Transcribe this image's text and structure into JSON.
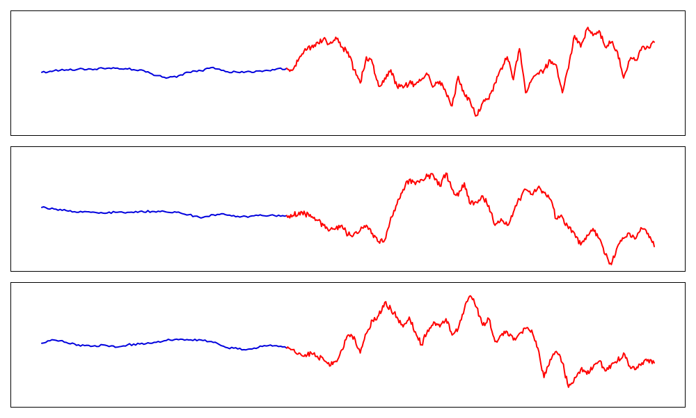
{
  "chart_data": [
    {
      "type": "line",
      "xlim": [
        0,
        1000
      ],
      "ylim": [
        -3.5,
        3.5
      ],
      "grid": false,
      "legend": "none",
      "series": [
        {
          "color": "#0000dd",
          "x": [
            0,
            20,
            40,
            60,
            80,
            100,
            120,
            140,
            160,
            180,
            200,
            220,
            240,
            260,
            280,
            300,
            320,
            340,
            360,
            380,
            400
          ],
          "y": [
            0.05,
            0.15,
            0.2,
            0.25,
            0.25,
            0.3,
            0.3,
            0.25,
            0.2,
            -0.05,
            -0.25,
            -0.25,
            0.05,
            0.15,
            0.35,
            0.1,
            0.05,
            0.1,
            0.1,
            0.2,
            0.3
          ]
        },
        {
          "color": "#ff0000",
          "x": [
            400,
            410,
            420,
            430,
            440,
            450,
            460,
            470,
            480,
            490,
            500,
            510,
            520,
            530,
            540,
            550,
            560,
            570,
            580,
            590,
            600,
            610,
            620,
            630,
            640,
            650,
            660,
            670,
            680,
            690,
            700,
            710,
            720,
            730,
            740,
            750,
            760,
            770,
            780,
            790,
            800,
            810,
            820,
            830,
            840,
            850,
            860,
            870,
            880,
            890,
            900,
            910,
            920,
            930,
            940,
            950,
            960,
            970,
            980,
            990,
            1000
          ],
          "y": [
            0.3,
            0.2,
            0.9,
            1.5,
            1.6,
            1.9,
            2.1,
            1.8,
            2.2,
            1.6,
            1.3,
            0.2,
            -0.6,
            1.0,
            0.6,
            -0.8,
            -0.3,
            0.2,
            -0.8,
            -0.9,
            -0.6,
            -0.7,
            -0.4,
            -0.1,
            -0.8,
            -0.5,
            -1.2,
            -2.0,
            -0.2,
            -1.3,
            -1.8,
            -2.6,
            -1.8,
            -1.6,
            -0.6,
            0.3,
            1.0,
            -0.4,
            1.5,
            -1.2,
            -0.4,
            0.0,
            0.2,
            0.8,
            0.5,
            -1.2,
            0.3,
            2.3,
            1.6,
            2.7,
            2.3,
            2.6,
            1.6,
            1.9,
            1.3,
            -0.3,
            0.8,
            0.8,
            1.6,
            1.6,
            1.9
          ]
        }
      ]
    },
    {
      "type": "line",
      "xlim": [
        0,
        1000
      ],
      "ylim": [
        -3.5,
        3.5
      ],
      "grid": false,
      "legend": "none",
      "series": [
        {
          "color": "#0000dd",
          "x": [
            0,
            20,
            40,
            60,
            80,
            100,
            120,
            140,
            160,
            180,
            200,
            220,
            240,
            260,
            280,
            300,
            320,
            340,
            360,
            380,
            400
          ],
          "y": [
            0.1,
            0.0,
            -0.1,
            -0.2,
            -0.2,
            -0.25,
            -0.2,
            -0.2,
            -0.15,
            -0.15,
            -0.15,
            -0.2,
            -0.35,
            -0.55,
            -0.35,
            -0.35,
            -0.45,
            -0.45,
            -0.4,
            -0.4,
            -0.4
          ]
        },
        {
          "color": "#ff0000",
          "x": [
            400,
            410,
            420,
            430,
            440,
            450,
            460,
            470,
            480,
            490,
            500,
            510,
            520,
            530,
            540,
            550,
            560,
            570,
            580,
            590,
            600,
            610,
            620,
            630,
            640,
            650,
            660,
            670,
            680,
            690,
            700,
            710,
            720,
            730,
            740,
            750,
            760,
            770,
            780,
            790,
            800,
            810,
            820,
            830,
            840,
            850,
            860,
            870,
            880,
            890,
            900,
            910,
            920,
            930,
            940,
            950,
            960,
            970,
            980,
            990,
            1000
          ],
          "y": [
            -0.4,
            -0.4,
            -0.2,
            -0.3,
            -0.5,
            -0.7,
            -1.0,
            -1.3,
            -1.2,
            -1.0,
            -1.6,
            -1.5,
            -1.3,
            -1.0,
            -1.5,
            -2.0,
            -1.9,
            -0.5,
            0.3,
            1.2,
            1.8,
            1.5,
            1.8,
            2.0,
            2.0,
            1.4,
            2.2,
            1.2,
            0.8,
            1.6,
            0.3,
            0.4,
            0.8,
            0.2,
            -1.0,
            -0.6,
            -1.0,
            -0.2,
            0.6,
            1.2,
            0.9,
            1.3,
            1.0,
            0.6,
            -0.6,
            -0.5,
            -1.2,
            -1.5,
            -2.2,
            -1.6,
            -1.2,
            -1.8,
            -2.8,
            -3.4,
            -2.3,
            -1.8,
            -1.5,
            -1.8,
            -1.2,
            -1.5,
            -2.3
          ]
        }
      ]
    },
    {
      "type": "line",
      "xlim": [
        0,
        1000
      ],
      "ylim": [
        -3.5,
        3.5
      ],
      "grid": false,
      "legend": "none",
      "series": [
        {
          "color": "#0000dd",
          "x": [
            0,
            20,
            40,
            60,
            80,
            100,
            120,
            140,
            160,
            180,
            200,
            220,
            240,
            260,
            280,
            300,
            320,
            340,
            360,
            380,
            400
          ],
          "y": [
            0.1,
            0.3,
            0.15,
            0.0,
            -0.1,
            0.0,
            -0.15,
            0.0,
            0.05,
            0.1,
            0.25,
            0.35,
            0.3,
            0.3,
            0.15,
            -0.15,
            -0.25,
            -0.25,
            -0.1,
            -0.05,
            -0.2
          ]
        },
        {
          "color": "#ff0000",
          "x": [
            400,
            410,
            420,
            430,
            440,
            450,
            460,
            470,
            480,
            490,
            500,
            510,
            520,
            530,
            540,
            550,
            560,
            570,
            580,
            590,
            600,
            610,
            620,
            630,
            640,
            650,
            660,
            670,
            680,
            690,
            700,
            710,
            720,
            730,
            740,
            750,
            760,
            770,
            780,
            790,
            800,
            810,
            820,
            830,
            840,
            850,
            860,
            870,
            880,
            890,
            900,
            910,
            920,
            930,
            940,
            950,
            960,
            970,
            980,
            990,
            1000
          ],
          "y": [
            -0.2,
            -0.3,
            -0.5,
            -0.6,
            -0.5,
            -0.7,
            -0.9,
            -1.3,
            -1.0,
            -0.3,
            0.6,
            0.5,
            -0.5,
            0.7,
            1.5,
            1.8,
            2.6,
            2.2,
            1.7,
            1.1,
            1.7,
            0.8,
            0.0,
            0.9,
            1.4,
            1.1,
            1.6,
            0.6,
            1.0,
            2.2,
            3.0,
            2.3,
            1.2,
            1.6,
            0.2,
            0.6,
            0.8,
            0.3,
            0.7,
            1.0,
            0.9,
            -0.2,
            -2.0,
            -0.9,
            -0.4,
            -1.1,
            -2.6,
            -2.0,
            -1.5,
            -1.8,
            -1.4,
            -1.0,
            -1.6,
            -1.2,
            -1.0,
            -0.5,
            -1.3,
            -1.5,
            -1.1,
            -0.9,
            -1.1
          ]
        }
      ]
    }
  ]
}
